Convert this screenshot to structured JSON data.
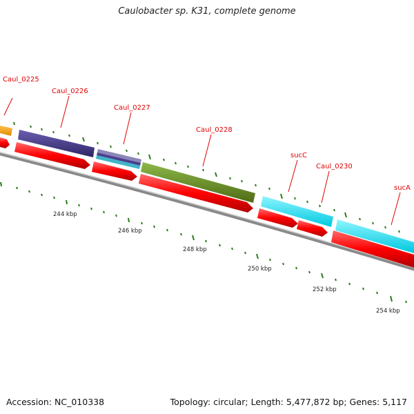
{
  "title": "Caulobacter sp. K31, complete genome",
  "accession": "Accession: NC_010338",
  "summary": "Topology: circular; Length: 5,477,872 bp; Genes: 5,117",
  "colors": {
    "backbone": "#8a8a8a",
    "label_red": "#e00000",
    "tick_green": "#2a7a1a",
    "cds_red": "#ff0000"
  },
  "features": [
    {
      "name": "Caul_0225",
      "color": "#f5a623"
    },
    {
      "name": "Caul_0226",
      "color": "#4b3f8f"
    },
    {
      "name": "Caul_0227",
      "color": "#3fb6c8"
    },
    {
      "name": "Caul_0228",
      "color": "#6b8e23"
    },
    {
      "name": "sucC",
      "color": "#00e5ff"
    },
    {
      "name": "Caul_0230",
      "color": "#00e5ff"
    },
    {
      "name": "sucA",
      "color": "#00e5ff"
    }
  ],
  "kbp_marks": [
    "244 kbp",
    "246 kbp",
    "248 kbp",
    "250 kbp",
    "252 kbp",
    "254 kbp"
  ]
}
